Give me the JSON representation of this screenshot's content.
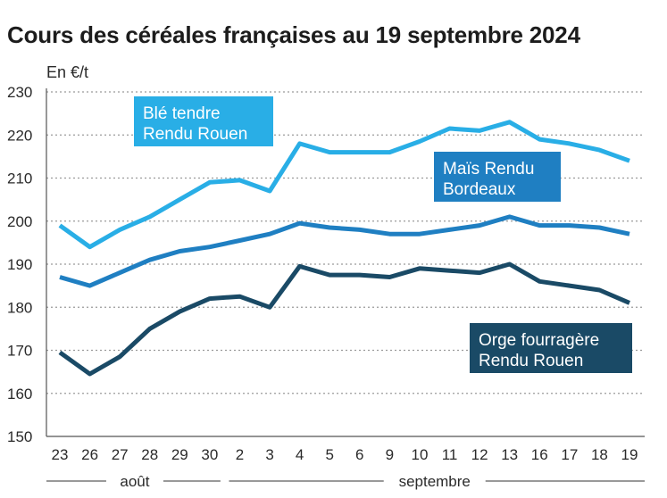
{
  "chart_data": {
    "type": "line",
    "title": "Cours des céréales françaises au 19 septembre 2024",
    "unit_label": "En €/t",
    "ylim": [
      150,
      230
    ],
    "yticks": [
      150,
      160,
      170,
      180,
      190,
      200,
      210,
      220,
      230
    ],
    "grid": "horizontal dotted",
    "categories": [
      "23",
      "26",
      "27",
      "28",
      "29",
      "30",
      "2",
      "3",
      "4",
      "5",
      "6",
      "9",
      "10",
      "11",
      "12",
      "13",
      "16",
      "17",
      "18",
      "19"
    ],
    "months": [
      {
        "name": "août",
        "from": 0,
        "to": 5
      },
      {
        "name": "septembre",
        "from": 6,
        "to": 19
      }
    ],
    "series": [
      {
        "name": "Blé tendre Rendu Rouen",
        "label_lines": [
          "Blé tendre",
          "Rendu Rouen"
        ],
        "color": "#29aee6",
        "values": [
          199,
          194,
          198,
          201,
          205,
          209,
          209.5,
          207,
          218,
          216,
          216,
          216,
          218.5,
          221.5,
          221,
          223,
          219,
          218,
          216.5,
          214
        ]
      },
      {
        "name": "Maïs Rendu Bordeaux",
        "label_lines": [
          "Maïs Rendu",
          "Bordeaux"
        ],
        "color": "#1f7fc2",
        "values": [
          187,
          185,
          188,
          191,
          193,
          194,
          195.5,
          197,
          199.5,
          198.5,
          198,
          197,
          197,
          198,
          199,
          201,
          199,
          199,
          198.5,
          197
        ]
      },
      {
        "name": "Orge fourragère Rendu Rouen",
        "label_lines": [
          "Orge fourragère",
          "Rendu Rouen"
        ],
        "color": "#1a4a66",
        "values": [
          169.5,
          164.5,
          168.5,
          175,
          179,
          182,
          182.5,
          180,
          189.5,
          187.5,
          187.5,
          187,
          189,
          188.5,
          188,
          190,
          186,
          185,
          184,
          181
        ]
      }
    ]
  }
}
